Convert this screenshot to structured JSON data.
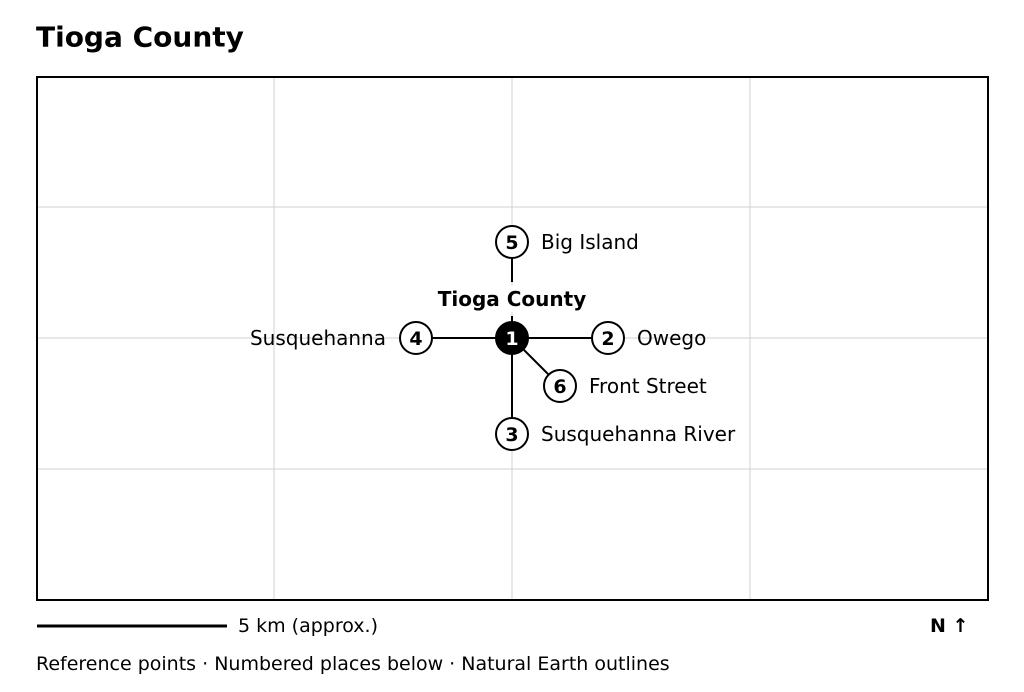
{
  "title": "Tioga County",
  "nodes": [
    {
      "number": "1",
      "label": "Tioga County"
    },
    {
      "number": "2",
      "label": "Owego"
    },
    {
      "number": "3",
      "label": "Susquehanna River"
    },
    {
      "number": "4",
      "label": "Susquehanna"
    },
    {
      "number": "5",
      "label": "Big Island"
    },
    {
      "number": "6",
      "label": "Front Street"
    }
  ],
  "scale_label": "5 km (approx.)",
  "north_label": "N ↑",
  "footer": "Reference points · Numbered places below · Natural Earth outlines"
}
